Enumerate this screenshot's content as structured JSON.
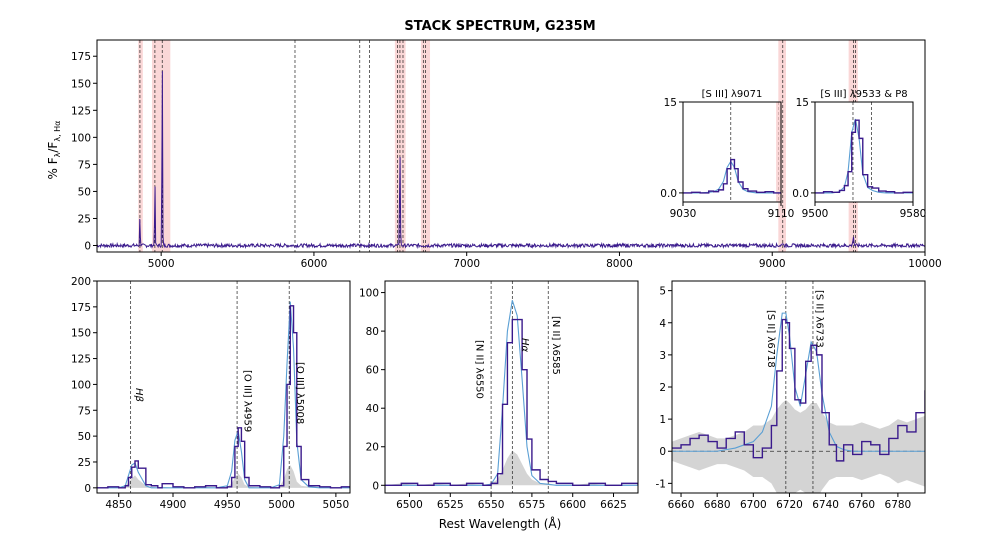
{
  "figure": {
    "title": "STACK SPECTRUM, G235M",
    "xlabel": "Rest Wavelength (Å)",
    "ylabel": "% F",
    "ylabel_sub": "λ",
    "ylabel_mid": "/F",
    "ylabel_sub2": "λ, Hα"
  },
  "colors": {
    "data": "#3a1a8c",
    "model": "#5a9fd4",
    "shade": "#cccccc",
    "band": "#f8c9c9",
    "guide": "#555555"
  },
  "chart_data": [
    {
      "id": "full",
      "type": "line",
      "title": "STACK SPECTRUM, G235M",
      "xlabel": "Rest Wavelength (Å)",
      "ylabel": "% Fλ/Fλ,Hα",
      "xlim": [
        4580,
        10000
      ],
      "ylim": [
        -6,
        190
      ],
      "xticks": [
        5000,
        6000,
        7000,
        8000,
        9000,
        10000
      ],
      "yticks": [
        0,
        25,
        50,
        75,
        100,
        125,
        150,
        175
      ],
      "bands": [
        [
          4850,
          4880
        ],
        [
          4940,
          5060
        ],
        [
          6530,
          6600
        ],
        [
          6700,
          6760
        ],
        [
          9040,
          9090
        ],
        [
          9500,
          9560
        ]
      ],
      "guides": [
        4861,
        4959,
        5007,
        5876,
        6300,
        6364,
        6548,
        6563,
        6583,
        6716,
        6731,
        9069,
        9531,
        9546
      ],
      "lines": [
        {
          "x": 4861,
          "peak": 27,
          "w": 4
        },
        {
          "x": 4959,
          "peak": 60,
          "w": 4
        },
        {
          "x": 5007,
          "peak": 182,
          "w": 4
        },
        {
          "x": 6563,
          "peak": 88,
          "w": 5
        },
        {
          "x": 9531,
          "peak": 9,
          "w": 6
        },
        {
          "x": 9069,
          "peak": 3,
          "w": 6
        }
      ]
    },
    {
      "id": "inset1",
      "type": "line",
      "title": "[S III] λ9071",
      "xlim": [
        9030,
        9110
      ],
      "ylim": [
        -1.5,
        15
      ],
      "xticks": [
        9030,
        9110
      ],
      "yticks": [
        0.0,
        15
      ],
      "ytick_labels": [
        "0.0",
        "15"
      ],
      "guides": [
        9069,
        9108
      ],
      "x": [
        9030,
        9037,
        9044,
        9051,
        9055,
        9059,
        9063,
        9066,
        9069,
        9072,
        9075,
        9079,
        9083,
        9090,
        9097,
        9104,
        9110
      ],
      "y": [
        0,
        0.1,
        0,
        0.3,
        0.2,
        0.5,
        1.5,
        4,
        5.5,
        4,
        1.8,
        0.7,
        0.3,
        0.1,
        0.2,
        0,
        0.1
      ],
      "model": [
        0,
        0,
        0,
        0.1,
        0.2,
        0.6,
        1.9,
        4.2,
        5.2,
        4.2,
        1.9,
        0.6,
        0.2,
        0,
        0,
        0,
        0
      ]
    },
    {
      "id": "inset2",
      "type": "line",
      "title": "[S III] λ9533 &  P8",
      "xlim": [
        9500,
        9580
      ],
      "ylim": [
        -1.5,
        15
      ],
      "xticks": [
        9500,
        9580
      ],
      "yticks": [
        0.0,
        15
      ],
      "ytick_labels": [
        "0.0",
        "15"
      ],
      "guides": [
        9531,
        9546
      ],
      "x": [
        9500,
        9507,
        9514,
        9520,
        9524,
        9527,
        9530,
        9533,
        9536,
        9539,
        9543,
        9547,
        9552,
        9558,
        9565,
        9572,
        9580
      ],
      "y": [
        0,
        0.2,
        0.1,
        0.4,
        1.2,
        3.5,
        10,
        12,
        9,
        3,
        1,
        0.8,
        0.3,
        0.2,
        0,
        0.1,
        0
      ],
      "model": [
        0,
        0,
        0,
        0.2,
        1,
        3.5,
        10,
        12.2,
        9,
        3.2,
        0.9,
        0.4,
        0.1,
        0,
        0,
        0,
        0
      ]
    },
    {
      "id": "hbeta_oiii",
      "type": "line",
      "xlim": [
        4830,
        5063
      ],
      "ylim": [
        -5,
        200
      ],
      "xticks": [
        4850,
        4900,
        4950,
        5000,
        5050
      ],
      "yticks": [
        0,
        25,
        50,
        75,
        100,
        125,
        150,
        175,
        200
      ],
      "guides": [
        4861,
        4959,
        5007
      ],
      "line_labels": [
        "Hβ",
        "[O III] λ4959",
        "[O III] λ5008"
      ],
      "x": [
        4830,
        4840,
        4850,
        4856,
        4859,
        4862,
        4865,
        4868,
        4875,
        4880,
        4886,
        4890,
        4900,
        4910,
        4920,
        4930,
        4940,
        4950,
        4954,
        4957,
        4960,
        4963,
        4966,
        4970,
        4980,
        4990,
        4998,
        5002,
        5005,
        5008,
        5011,
        5014,
        5018,
        5025,
        5035,
        5045,
        5055,
        5063
      ],
      "y": [
        0,
        1,
        0,
        2,
        10,
        20,
        26,
        19,
        3,
        2,
        0,
        4,
        1,
        0,
        1,
        2,
        0,
        1,
        10,
        40,
        58,
        45,
        10,
        2,
        1,
        0,
        2,
        40,
        100,
        176,
        150,
        40,
        8,
        2,
        1,
        0,
        1,
        0
      ],
      "model": [
        0,
        0,
        0,
        2,
        12,
        22,
        24,
        15,
        2,
        0,
        0,
        0,
        0,
        0,
        0,
        0,
        0,
        2,
        16,
        46,
        55,
        35,
        8,
        0,
        0,
        0,
        3,
        50,
        120,
        180,
        135,
        45,
        8,
        1,
        0,
        0,
        0,
        0
      ],
      "shade": [
        0,
        1,
        0,
        2,
        5,
        9,
        12,
        8,
        2,
        1,
        0,
        1,
        0,
        0,
        0,
        1,
        0,
        1,
        4,
        10,
        14,
        10,
        3,
        1,
        0,
        0,
        1,
        8,
        18,
        22,
        16,
        6,
        2,
        1,
        0,
        0,
        0,
        0
      ]
    },
    {
      "id": "halpha_nii",
      "type": "line",
      "xlim": [
        6485,
        6640
      ],
      "ylim": [
        -4,
        106
      ],
      "xticks": [
        6500,
        6525,
        6550,
        6575,
        6600,
        6625
      ],
      "yticks": [
        0,
        20,
        40,
        60,
        80,
        100
      ],
      "guides": [
        6550,
        6563,
        6585
      ],
      "line_labels": [
        "[N II] λ6550",
        "Hα",
        "[N II] λ6585"
      ],
      "x": [
        6485,
        6495,
        6505,
        6515,
        6525,
        6535,
        6545,
        6550,
        6554,
        6557,
        6560,
        6563,
        6566,
        6569,
        6572,
        6575,
        6580,
        6585,
        6590,
        6600,
        6610,
        6620,
        6630,
        6640
      ],
      "y": [
        0,
        1,
        0,
        1,
        0,
        1,
        0,
        1,
        6,
        42,
        74,
        86,
        86,
        60,
        24,
        8,
        3,
        2,
        1,
        0,
        1,
        0,
        1,
        0
      ],
      "model": [
        0,
        0,
        0,
        0,
        0,
        0,
        0,
        0.5,
        6,
        40,
        80,
        96,
        88,
        55,
        20,
        5,
        1,
        0.5,
        0,
        0,
        0,
        0,
        0,
        0
      ],
      "shade": [
        0,
        1,
        0,
        1,
        0,
        1,
        0,
        1,
        3,
        8,
        14,
        18,
        16,
        11,
        6,
        3,
        1,
        1,
        0,
        0,
        1,
        0,
        0,
        0
      ]
    },
    {
      "id": "sii",
      "type": "line",
      "xlim": [
        6655,
        6795
      ],
      "ylim": [
        -1.3,
        5.3
      ],
      "xticks": [
        6660,
        6680,
        6700,
        6720,
        6740,
        6760,
        6780
      ],
      "yticks": [
        -1,
        0,
        1,
        2,
        3,
        4,
        5
      ],
      "guides": [
        6718,
        6733
      ],
      "line_labels": [
        "[S II] λ6718",
        "[S II] λ6733"
      ],
      "x": [
        6655,
        6660,
        6665,
        6670,
        6675,
        6680,
        6685,
        6690,
        6695,
        6700,
        6705,
        6710,
        6713,
        6716,
        6718,
        6720,
        6723,
        6726,
        6729,
        6732,
        6735,
        6738,
        6742,
        6746,
        6750,
        6755,
        6760,
        6765,
        6770,
        6775,
        6780,
        6785,
        6790,
        6795
      ],
      "y": [
        0.1,
        0.2,
        0.4,
        0.5,
        0.3,
        0.1,
        0.4,
        0.6,
        0.2,
        -0.2,
        0.1,
        0.8,
        2.5,
        4.1,
        4.0,
        3.2,
        1.6,
        1.5,
        2.8,
        3.3,
        3.0,
        1.2,
        0.2,
        -0.3,
        0.2,
        -0.1,
        0.3,
        0.2,
        -0.1,
        0.4,
        0.8,
        0.6,
        1.2,
        1.9
      ],
      "model": [
        0,
        0,
        0,
        0,
        0,
        0,
        0.05,
        0.1,
        0.2,
        0.3,
        0.6,
        1.4,
        3.0,
        4.3,
        4.3,
        3.6,
        2.0,
        1.4,
        2.4,
        3.4,
        3.1,
        1.8,
        0.6,
        0.15,
        0.05,
        0,
        0,
        0,
        0,
        0,
        0,
        0,
        0,
        0
      ],
      "shade": [
        0.3,
        0.4,
        0.5,
        0.6,
        0.5,
        0.4,
        0.4,
        0.5,
        0.6,
        0.8,
        0.8,
        1.0,
        1.3,
        1.5,
        1.6,
        1.5,
        1.3,
        1.2,
        1.3,
        1.5,
        1.5,
        1.2,
        0.9,
        0.8,
        0.8,
        0.8,
        0.9,
        0.8,
        0.7,
        0.8,
        1.0,
        0.9,
        1.0,
        1.1
      ]
    }
  ]
}
